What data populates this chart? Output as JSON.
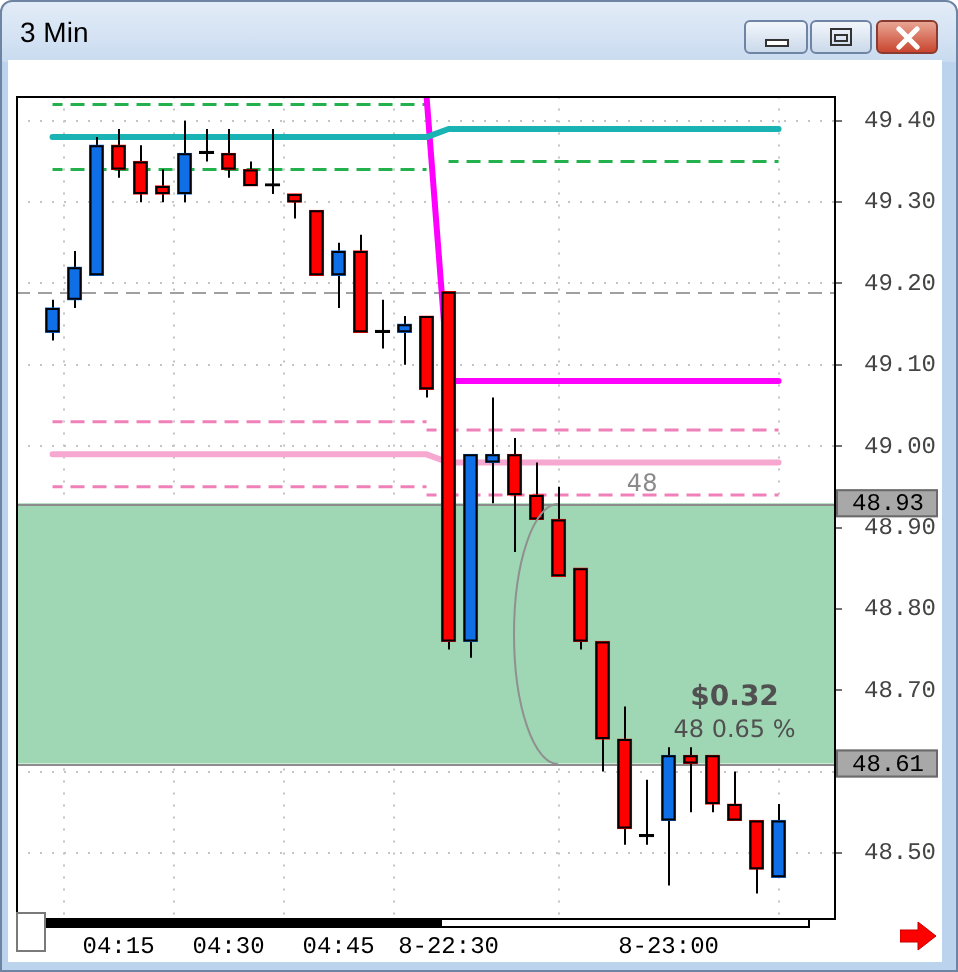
{
  "chart_data": {
    "type": "candlestick",
    "title": "3 Min",
    "categories": [
      null,
      null,
      null,
      "04:15",
      null,
      null,
      null,
      null,
      "04:30",
      null,
      null,
      null,
      null,
      "04:45",
      null,
      null,
      null,
      null,
      "8-22:30",
      null,
      null,
      null,
      null,
      null,
      null,
      null,
      null,
      null,
      "8-23:00",
      null,
      null,
      null,
      null,
      null
    ],
    "ohlc": [
      [
        49.14,
        49.18,
        49.13,
        49.17
      ],
      [
        49.18,
        49.24,
        49.17,
        49.22
      ],
      [
        49.21,
        49.38,
        49.21,
        49.37
      ],
      [
        49.37,
        49.39,
        49.33,
        49.34
      ],
      [
        49.35,
        49.37,
        49.3,
        49.31
      ],
      [
        49.32,
        49.34,
        49.3,
        49.31
      ],
      [
        49.31,
        49.4,
        49.3,
        49.36
      ],
      [
        49.36,
        49.39,
        49.35,
        49.36
      ],
      [
        49.36,
        49.39,
        49.33,
        49.34
      ],
      [
        49.34,
        49.35,
        49.32,
        49.32
      ],
      [
        49.32,
        49.39,
        49.31,
        49.32
      ],
      [
        49.31,
        49.31,
        49.28,
        49.3
      ],
      [
        49.29,
        49.29,
        49.21,
        49.21
      ],
      [
        49.21,
        49.25,
        49.17,
        49.24
      ],
      [
        49.24,
        49.26,
        49.14,
        49.14
      ],
      [
        49.14,
        49.18,
        49.12,
        49.14
      ],
      [
        49.14,
        49.16,
        49.1,
        49.15
      ],
      [
        49.16,
        49.16,
        49.06,
        49.07
      ],
      [
        49.19,
        49.19,
        48.75,
        48.76
      ],
      [
        48.76,
        48.99,
        48.74,
        48.99
      ],
      [
        48.98,
        49.06,
        48.93,
        48.99
      ],
      [
        48.99,
        49.01,
        48.87,
        48.94
      ],
      [
        48.94,
        48.98,
        48.91,
        48.91
      ],
      [
        48.91,
        48.95,
        48.84,
        48.84
      ],
      [
        48.85,
        48.85,
        48.75,
        48.76
      ],
      [
        48.76,
        48.76,
        48.6,
        48.64
      ],
      [
        48.64,
        48.68,
        48.51,
        48.53
      ],
      [
        48.52,
        48.59,
        48.51,
        48.52
      ],
      [
        48.54,
        48.63,
        48.46,
        48.62
      ],
      [
        48.62,
        48.63,
        48.55,
        48.61
      ],
      [
        48.62,
        48.62,
        48.55,
        48.56
      ],
      [
        48.56,
        48.6,
        48.54,
        48.54
      ],
      [
        48.54,
        48.54,
        48.45,
        48.48
      ],
      [
        48.47,
        48.56,
        48.47,
        48.54
      ]
    ],
    "colors": [
      "#0f6fe6",
      "#0f6fe6",
      "#0f6fe6",
      "#ff0000",
      "#ff0000",
      "#ff0000",
      "#0f6fe6",
      "#000000",
      "#ff0000",
      "#ff0000",
      "#000000",
      "#ff0000",
      "#ff0000",
      "#0f6fe6",
      "#ff0000",
      "#000000",
      "#0f6fe6",
      "#ff0000",
      "#ff0000",
      "#0f6fe6",
      "#0f6fe6",
      "#ff0000",
      "#ff0000",
      "#ff0000",
      "#ff0000",
      "#ff0000",
      "#ff0000",
      "#000000",
      "#0f6fe6",
      "#ff0000",
      "#ff0000",
      "#ff0000",
      "#ff0000",
      "#0f6fe6"
    ],
    "series": [
      {
        "type": "line",
        "color": "#1ab3b3",
        "values": [
          49.38,
          49.38,
          49.38,
          49.38,
          49.38,
          49.38,
          49.38,
          49.38,
          49.38,
          49.38,
          49.38,
          49.38,
          49.38,
          49.38,
          49.38,
          49.38,
          49.38,
          49.38,
          49.39,
          49.39,
          49.39,
          49.39,
          49.39,
          49.39,
          49.39,
          49.39,
          49.39,
          49.39,
          49.39,
          49.39,
          49.39,
          49.39,
          49.39,
          49.39
        ]
      },
      {
        "type": "line",
        "color": "#f7a8d0",
        "values": [
          48.99,
          48.99,
          48.99,
          48.99,
          48.99,
          48.99,
          48.99,
          48.99,
          48.99,
          48.99,
          48.99,
          48.99,
          48.99,
          48.99,
          48.99,
          48.99,
          48.99,
          48.99,
          48.98,
          48.98,
          48.98,
          48.98,
          48.98,
          48.98,
          48.98,
          48.98,
          48.98,
          48.98,
          48.98,
          48.98,
          48.98,
          48.98,
          48.98,
          48.98
        ]
      },
      {
        "type": "line",
        "color": "#ff00ff",
        "values": [
          null,
          null,
          null,
          null,
          null,
          null,
          null,
          null,
          null,
          null,
          null,
          null,
          null,
          null,
          null,
          null,
          null,
          49.43,
          49.08,
          49.08,
          49.08,
          49.08,
          49.08,
          49.08,
          49.08,
          49.08,
          49.08,
          49.08,
          49.08,
          49.08,
          49.08,
          49.08,
          49.08,
          49.08
        ]
      },
      {
        "type": "line",
        "color": "#22b14c",
        "line_style": "dashed",
        "values": [
          49.42,
          49.42,
          49.42,
          49.42,
          49.42,
          49.42,
          49.42,
          49.42,
          49.42,
          49.42,
          49.42,
          49.42,
          49.42,
          49.42,
          49.42,
          49.42,
          49.42,
          49.42,
          null,
          null,
          null,
          null,
          null,
          null,
          null,
          null,
          null,
          null,
          null,
          null,
          null,
          null,
          null,
          null
        ]
      },
      {
        "type": "line",
        "color": "#22b14c",
        "line_style": "dashed",
        "values": [
          49.34,
          49.34,
          49.34,
          49.34,
          49.34,
          49.34,
          49.34,
          49.34,
          49.34,
          49.34,
          49.34,
          49.34,
          49.34,
          49.34,
          49.34,
          49.34,
          49.34,
          49.34,
          null,
          null,
          null,
          null,
          null,
          null,
          null,
          null,
          null,
          null,
          null,
          null,
          null,
          null,
          null,
          null
        ]
      },
      {
        "type": "line",
        "color": "#22b14c",
        "line_style": "dashed",
        "values": [
          null,
          null,
          null,
          null,
          null,
          null,
          null,
          null,
          null,
          null,
          null,
          null,
          null,
          null,
          null,
          null,
          null,
          null,
          49.35,
          49.35,
          49.35,
          49.35,
          49.35,
          49.35,
          49.35,
          49.35,
          49.35,
          49.35,
          49.35,
          49.35,
          49.35,
          49.35,
          49.35,
          49.35
        ]
      },
      {
        "type": "line",
        "color": "#f080b8",
        "line_style": "dashed",
        "values": [
          49.03,
          49.03,
          49.03,
          49.03,
          49.03,
          49.03,
          49.03,
          49.03,
          49.03,
          49.03,
          49.03,
          49.03,
          49.03,
          49.03,
          49.03,
          49.03,
          49.03,
          49.03,
          null,
          null,
          null,
          null,
          null,
          null,
          null,
          null,
          null,
          null,
          null,
          null,
          null,
          null,
          null,
          null
        ]
      },
      {
        "type": "line",
        "color": "#f080b8",
        "line_style": "dashed",
        "values": [
          48.95,
          48.95,
          48.95,
          48.95,
          48.95,
          48.95,
          48.95,
          48.95,
          48.95,
          48.95,
          48.95,
          48.95,
          48.95,
          48.95,
          48.95,
          48.95,
          48.95,
          48.95,
          null,
          null,
          null,
          null,
          null,
          null,
          null,
          null,
          null,
          null,
          null,
          null,
          null,
          null,
          null,
          null
        ]
      },
      {
        "type": "line",
        "color": "#f080b8",
        "line_style": "dashed",
        "values": [
          null,
          null,
          null,
          null,
          null,
          null,
          null,
          null,
          null,
          null,
          null,
          null,
          null,
          null,
          null,
          null,
          null,
          49.02,
          49.02,
          49.02,
          49.02,
          49.02,
          49.02,
          49.02,
          49.02,
          49.02,
          49.02,
          49.02,
          49.02,
          49.02,
          49.02,
          49.02,
          49.02,
          49.02
        ]
      },
      {
        "type": "line",
        "color": "#f080b8",
        "line_style": "dashed",
        "values": [
          null,
          null,
          null,
          null,
          null,
          null,
          null,
          null,
          null,
          null,
          null,
          null,
          null,
          null,
          null,
          null,
          null,
          48.94,
          48.94,
          48.94,
          48.94,
          48.94,
          48.94,
          48.94,
          48.94,
          48.94,
          48.94,
          48.94,
          48.94,
          48.94,
          48.94,
          48.94,
          48.94,
          48.94
        ]
      }
    ],
    "ylim": [
      48.42,
      49.43
    ],
    "yticks": [
      {
        "value": 49.4,
        "label": "49.40"
      },
      {
        "value": 49.3,
        "label": "49.30"
      },
      {
        "value": 49.2,
        "label": "49.20"
      },
      {
        "value": 49.1,
        "label": "49.10"
      },
      {
        "value": 49,
        "label": "49.00"
      },
      {
        "value": 48.9,
        "label": "48.90"
      },
      {
        "value": 48.8,
        "label": "48.80"
      },
      {
        "value": 48.7,
        "label": "48.70"
      },
      {
        "value": 48.6,
        "label": null
      },
      {
        "value": 48.5,
        "label": "48.50"
      }
    ],
    "ref_lines": [
      {
        "axis": "y",
        "value": 49.19,
        "color": "#a0a0a0",
        "line_style": "dashed"
      },
      {
        "axis": "y",
        "value": 48.93,
        "label": "48.93",
        "color": "#8c8c8c"
      },
      {
        "axis": "y",
        "value": 48.61,
        "label": "48.61",
        "color": "#8c8c8c"
      }
    ],
    "bands": [
      {
        "axis": "y",
        "from": 48.61,
        "to": 48.93,
        "color": "#9fd6b4"
      }
    ],
    "annotations": [
      "48",
      "$0.32",
      "48 0.65 %"
    ],
    "grid": true
  }
}
